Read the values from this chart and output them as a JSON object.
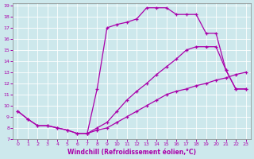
{
  "xlabel": "Windchill (Refroidissement éolien,°C)",
  "bg_color": "#cde8ec",
  "line_color": "#aa00aa",
  "xlim": [
    -0.5,
    23.5
  ],
  "ylim": [
    7,
    19.2
  ],
  "xticks": [
    0,
    1,
    2,
    3,
    4,
    5,
    6,
    7,
    8,
    9,
    10,
    11,
    12,
    13,
    14,
    15,
    16,
    17,
    18,
    19,
    20,
    21,
    22,
    23
  ],
  "yticks": [
    7,
    8,
    9,
    10,
    11,
    12,
    13,
    14,
    15,
    16,
    17,
    18,
    19
  ],
  "line1_x": [
    0,
    1,
    2,
    3,
    4,
    5,
    6,
    7,
    8,
    9,
    10,
    11,
    12,
    13,
    14,
    15,
    16,
    17,
    18,
    19,
    20,
    21,
    22,
    23
  ],
  "line1_y": [
    9.5,
    8.8,
    8.2,
    8.2,
    8.0,
    7.8,
    7.5,
    7.5,
    7.8,
    8.0,
    8.5,
    9.0,
    9.5,
    10.0,
    10.5,
    11.0,
    11.3,
    11.5,
    11.8,
    12.0,
    12.3,
    12.5,
    12.8,
    13.0
  ],
  "line2_x": [
    0,
    1,
    2,
    3,
    4,
    5,
    6,
    7,
    8,
    9,
    10,
    11,
    12,
    13,
    14,
    15,
    16,
    17,
    18,
    19,
    20,
    21,
    22,
    23
  ],
  "line2_y": [
    9.5,
    8.8,
    8.2,
    8.2,
    8.0,
    7.8,
    7.5,
    7.5,
    11.5,
    17.0,
    17.3,
    17.5,
    17.8,
    18.8,
    18.8,
    18.8,
    18.2,
    18.2,
    18.2,
    16.5,
    16.5,
    13.2,
    11.5,
    11.5
  ],
  "line3_x": [
    7,
    8,
    9,
    10,
    11,
    12,
    13,
    14,
    15,
    16,
    17,
    18,
    19,
    20,
    21,
    22,
    23
  ],
  "line3_y": [
    7.5,
    8.0,
    8.5,
    9.5,
    10.5,
    11.3,
    12.0,
    12.8,
    13.5,
    14.2,
    15.0,
    15.3,
    15.3,
    15.3,
    13.2,
    11.5,
    11.5
  ]
}
